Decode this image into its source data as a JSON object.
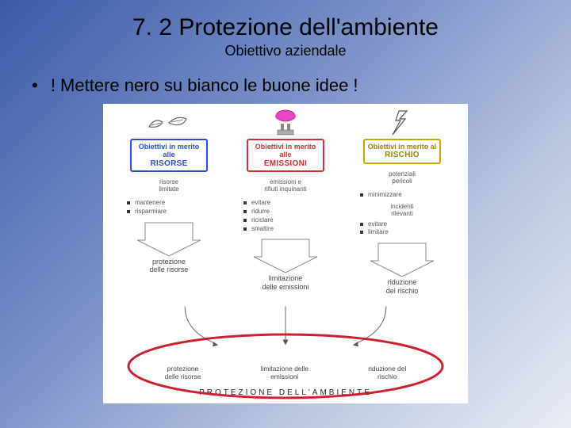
{
  "title": "7. 2 Protezione dell'ambiente",
  "subtitle": "Obiettivo aziendale",
  "bullet": "! Mettere nero su bianco le buone idee !",
  "colors": {
    "col1_border": "#2a4fd0",
    "col1_text": "#2a4fd0",
    "col2_border": "#d03030",
    "col2_text": "#d03030",
    "col3_border": "#c9a800",
    "col3_text": "#c9a800",
    "ellipse": "#d02030",
    "gray": "#666666",
    "bg": "#ffffff"
  },
  "columns": [
    {
      "obj_top": "Obiettivi in merito alle",
      "obj_main": "RISORSE",
      "sub": "risorse\nlimitate",
      "items": [
        "mantenere",
        "risparmiare"
      ],
      "mid": "protezione\ndelle risorse"
    },
    {
      "obj_top": "Obiettivi in merito alle",
      "obj_main": "EMISSIONI",
      "sub": "emissioni e\nrifiuti inquinanti",
      "items": [
        "evitare",
        "ridurre",
        "riciclare",
        "smaltire"
      ],
      "mid": "limitazione\ndelle emissioni"
    },
    {
      "obj_top": "Obiettivi in merito al",
      "obj_main": "RISCHIO",
      "sub": "potenziali\npericoli",
      "items": [
        "minimizzare"
      ],
      "sub2": "incidenti\nrilevanti",
      "items2": [
        "evitare",
        "limitare"
      ],
      "mid": "riduzione\ndel rischio"
    }
  ],
  "bottom_labels": [
    "protezione\ndelle risorse",
    "limitazione delle\nemissioni",
    "riduzione del\nrischio"
  ],
  "final": "PROTEZIONE DELL'AMBIENTE"
}
